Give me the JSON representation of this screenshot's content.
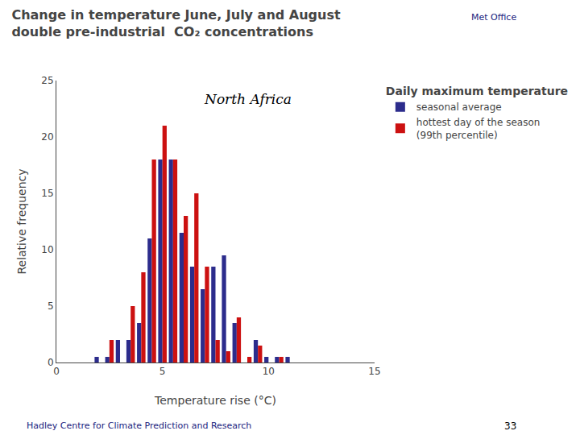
{
  "chart_data": {
    "type": "bar",
    "title": "Change in temperature June, July and August\ndouble pre-industrial  CO₂ concentrations",
    "subtitle": "North Africa",
    "xlabel": "Temperature rise (°C)",
    "ylabel": "Relative frequency",
    "x": [
      2.0,
      2.5,
      3.0,
      3.5,
      4.0,
      4.5,
      5.0,
      5.5,
      6.0,
      6.5,
      7.0,
      7.5,
      8.0,
      8.5,
      9.0,
      9.5,
      10.0,
      10.5,
      11.0
    ],
    "series": [
      {
        "name": "seasonal average",
        "color": "#2c2c8c",
        "values": [
          0.5,
          0.5,
          2.0,
          2.0,
          3.5,
          11.0,
          18.0,
          18.0,
          11.5,
          8.5,
          6.5,
          8.5,
          9.5,
          3.5,
          0.0,
          2.0,
          0.5,
          0.5,
          0.5
        ]
      },
      {
        "name": "hottest day of the season\n(99th percentile)",
        "color": "#cc1111",
        "values": [
          0.0,
          2.0,
          0.0,
          5.0,
          8.0,
          18.0,
          21.0,
          18.0,
          13.0,
          15.0,
          8.5,
          2.0,
          1.0,
          4.0,
          0.5,
          1.5,
          0.0,
          0.5,
          0.0
        ]
      }
    ],
    "xlim": [
      0,
      15
    ],
    "xticks": [
      0,
      5,
      10,
      15
    ],
    "ylim": [
      0,
      25
    ],
    "yticks": [
      0,
      5,
      10,
      15,
      20,
      25
    ],
    "grid": false,
    "legend": "right",
    "legend_title": "Daily maximum temperature",
    "annotations": [
      "Met Office",
      "Hadley Centre for Climate Prediction and Research",
      "33"
    ]
  }
}
